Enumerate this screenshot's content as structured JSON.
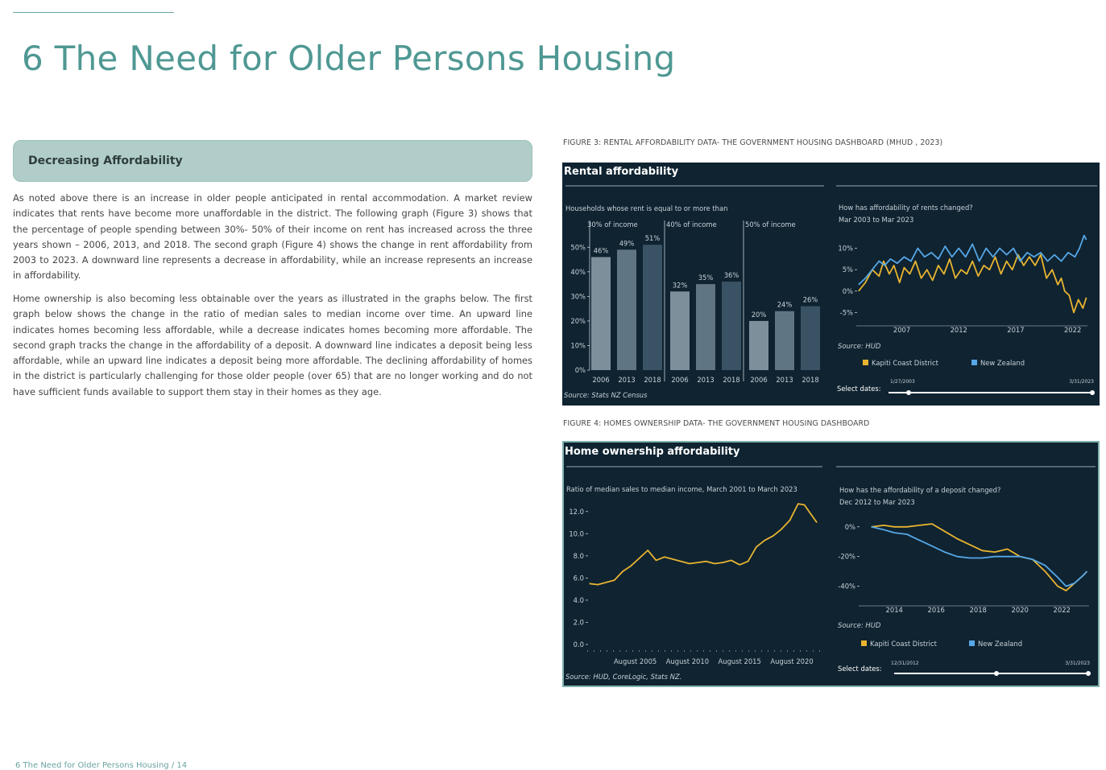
{
  "page_title": "6 The Need for Older Persons Housing",
  "section_heading": "Decreasing Affordability",
  "paragraphs": [
    "As noted above there is an increase in older people anticipated in rental accommodation. A market review indicates that rents have become more unaffordable in the district. The following graph (Figure 3) shows that the percentage of people spending between 30%- 50% of their income on rent has increased across the three years shown – 2006, 2013, and 2018. The second graph (Figure 4) shows the change in rent affordability from 2003 to 2023. A downward line represents a decrease in affordability, while an increase represents an increase in affordability.",
    "Home ownership is also becoming less obtainable over the years as illustrated in the graphs below. The first graph below shows the change in the ratio of median sales to median income over time. An upward line indicates homes becoming less affordable, while a decrease indicates homes becoming more affordable. The second graph tracks the change in the affordability of a deposit. A downward line indicates a deposit being less affordable, while an upward line indicates a deposit being more affordable. The declining affordability of homes in the district is particularly challenging for those older people (over 65) that are no longer working and do not have sufficient funds available to support them stay in their homes as they age."
  ],
  "figure3_caption": "FIGURE 3: RENTAL AFFORDABILITY DATA- THE GOVERNMENT HOUSING DASHBOARD (MHUD , 2023)",
  "figure4_caption": "FIGURE 4: HOMES OWNERSHIP DATA- THE GOVERNMENT HOUSING DASHBOARD",
  "footer": "6 The Need for Older Persons Housing / 14",
  "colors": {
    "teal": "#4f9893",
    "panel": "#0f2331",
    "bar_2006": "#7e8f9c",
    "bar_2013": "#5f7584",
    "bar_2018": "#3a5364",
    "kapiti": "#e8b430",
    "nz": "#56a7e6"
  },
  "chart_data": [
    {
      "type": "bar",
      "panel_title": "Rental affordability",
      "subtitle": "Households whose rent is equal to or more than",
      "groups": [
        "30% of income",
        "40% of income",
        "50% of income"
      ],
      "categories": [
        "2006",
        "2013",
        "2018"
      ],
      "series": [
        {
          "group": "30% of income",
          "values": [
            46,
            49,
            51
          ]
        },
        {
          "group": "40% of income",
          "values": [
            32,
            35,
            36
          ]
        },
        {
          "group": "50% of income",
          "values": [
            20,
            24,
            26
          ]
        }
      ],
      "yticks": [
        "0%",
        "10%",
        "20%",
        "30%",
        "40%",
        "50%"
      ],
      "ylim": [
        0,
        55
      ],
      "source": "Source: Stats NZ Census"
    },
    {
      "type": "line",
      "title": "How has affordability of rents changed?",
      "subtitle": "Mar 2003 to Mar 2023",
      "xlim": [
        2003,
        2023.3
      ],
      "ylim": [
        -7,
        12
      ],
      "xticks": [
        2007,
        2012,
        2017,
        2022
      ],
      "yticks": [
        -5,
        0,
        5,
        10
      ],
      "ytick_labels": [
        "-5%",
        "0%",
        "5%",
        "10%"
      ],
      "series": [
        {
          "name": "Kapiti Coast District",
          "color": "#e8b430",
          "x": [
            2003.2,
            2003.8,
            2004.4,
            2005.0,
            2005.4,
            2005.9,
            2006.3,
            2006.8,
            2007.2,
            2007.7,
            2008.2,
            2008.7,
            2009.2,
            2009.7,
            2010.2,
            2010.7,
            2011.2,
            2011.7,
            2012.2,
            2012.7,
            2013.2,
            2013.7,
            2014.2,
            2014.7,
            2015.2,
            2015.7,
            2016.2,
            2016.7,
            2017.2,
            2017.7,
            2018.2,
            2018.7,
            2019.2,
            2019.7,
            2020.2,
            2020.7,
            2021.0,
            2021.3,
            2021.7,
            2022.1,
            2022.5,
            2022.9,
            2023.2
          ],
          "y": [
            0,
            2,
            5,
            3.5,
            7,
            4,
            6,
            2,
            5.5,
            4,
            7,
            3,
            5,
            2.5,
            6,
            4,
            7.5,
            3,
            5,
            4,
            7,
            3.5,
            6,
            5,
            8,
            4,
            7,
            5,
            8.5,
            6,
            8,
            6,
            8.5,
            3,
            5,
            1.5,
            3,
            0,
            -1,
            -5,
            -2,
            -4,
            -1.5
          ]
        },
        {
          "name": "New Zealand",
          "color": "#56a7e6",
          "x": [
            2003.2,
            2003.8,
            2004.4,
            2005.0,
            2005.5,
            2006.0,
            2006.6,
            2007.2,
            2007.8,
            2008.4,
            2009.0,
            2009.6,
            2010.2,
            2010.8,
            2011.4,
            2012.0,
            2012.6,
            2013.2,
            2013.8,
            2014.4,
            2015.0,
            2015.6,
            2016.2,
            2016.8,
            2017.4,
            2018.0,
            2018.6,
            2019.2,
            2019.8,
            2020.4,
            2021.0,
            2021.6,
            2022.2,
            2022.6,
            2023.0,
            2023.2
          ],
          "y": [
            1.5,
            3,
            5,
            7,
            6,
            7.5,
            6.5,
            8,
            7,
            10,
            8,
            9,
            7.5,
            10.5,
            8,
            10,
            8,
            11,
            7,
            10,
            8,
            10,
            8.5,
            10,
            7,
            9,
            8,
            9,
            7,
            8.5,
            7,
            9,
            8,
            10,
            13,
            12
          ]
        }
      ],
      "source": "Source: HUD",
      "legend": "bottom",
      "select_dates_label": "Select dates:",
      "date_from": "1/27/2003",
      "date_to": "3/31/2023"
    },
    {
      "type": "line",
      "panel_title": "Home ownership affordability",
      "subtitle": "Ratio of median sales to median income, March 2001 to March 2023",
      "xlim": [
        2001,
        2023.3
      ],
      "ylim": [
        0,
        13
      ],
      "xticks": [
        2005.6,
        2010.6,
        2015.6,
        2020.6
      ],
      "xtick_labels": [
        "August 2005",
        "August 2010",
        "August 2015",
        "August 2020"
      ],
      "yticks": [
        0,
        2,
        4,
        6,
        8,
        10,
        12
      ],
      "ytick_labels": [
        "0.0",
        "2.0",
        "4.0",
        "6.0",
        "8.0",
        "10.0",
        "12.0"
      ],
      "series": [
        {
          "name": "",
          "color": "#e8b430",
          "x": [
            2001.2,
            2002,
            2002.8,
            2003.6,
            2004.4,
            2005.2,
            2006,
            2006.8,
            2007.6,
            2008.4,
            2009.2,
            2010,
            2010.8,
            2011.6,
            2012.4,
            2013.2,
            2014,
            2014.8,
            2015.6,
            2016.4,
            2017.2,
            2018,
            2018.8,
            2019.6,
            2020.4,
            2021.2,
            2021.8,
            2022.4,
            2023.0
          ],
          "y": [
            5.5,
            5.4,
            5.6,
            5.8,
            6.6,
            7.1,
            7.8,
            8.5,
            7.6,
            7.9,
            7.7,
            7.5,
            7.3,
            7.4,
            7.5,
            7.3,
            7.4,
            7.6,
            7.2,
            7.5,
            8.8,
            9.4,
            9.8,
            10.4,
            11.2,
            12.7,
            12.6,
            11.8,
            11.0
          ]
        }
      ],
      "source": "Source: HUD, CoreLogic, Stats NZ."
    },
    {
      "type": "line",
      "title": "How has the affordability of a deposit changed?",
      "subtitle": "Dec 2012 to Mar 2023",
      "xlim": [
        2012.3,
        2023.3
      ],
      "ylim": [
        -50,
        8
      ],
      "xticks": [
        2014,
        2016,
        2018,
        2020,
        2022
      ],
      "yticks": [
        0,
        -20,
        -40
      ],
      "ytick_labels": [
        "0%",
        "-20%",
        "-40%"
      ],
      "series": [
        {
          "name": "Kapiti Coast District",
          "color": "#e8b430",
          "x": [
            2012.9,
            2013.5,
            2014.0,
            2014.6,
            2015.2,
            2015.8,
            2016.4,
            2017.0,
            2017.6,
            2018.2,
            2018.8,
            2019.4,
            2020.0,
            2020.6,
            2021.2,
            2021.8,
            2022.2,
            2022.6,
            2023.0,
            2023.2
          ],
          "y": [
            0,
            1,
            0,
            0,
            1,
            2,
            -3,
            -8,
            -12,
            -16,
            -17,
            -15,
            -20,
            -22,
            -30,
            -40,
            -43,
            -38,
            -33,
            -30
          ]
        },
        {
          "name": "New Zealand",
          "color": "#56a7e6",
          "x": [
            2012.9,
            2013.5,
            2014.0,
            2014.6,
            2015.2,
            2015.8,
            2016.4,
            2017.0,
            2017.6,
            2018.2,
            2018.8,
            2019.4,
            2020.0,
            2020.6,
            2021.2,
            2021.8,
            2022.2,
            2022.6,
            2023.0,
            2023.2
          ],
          "y": [
            0,
            -2,
            -4,
            -5,
            -9,
            -13,
            -17,
            -20,
            -21,
            -21,
            -20,
            -20,
            -20,
            -22,
            -26,
            -34,
            -40,
            -38,
            -33,
            -30
          ]
        }
      ],
      "source": "Source: HUD",
      "legend": "bottom",
      "select_dates_label": "Select dates:",
      "date_from": "12/31/2012",
      "date_to": "3/31/2023"
    }
  ]
}
